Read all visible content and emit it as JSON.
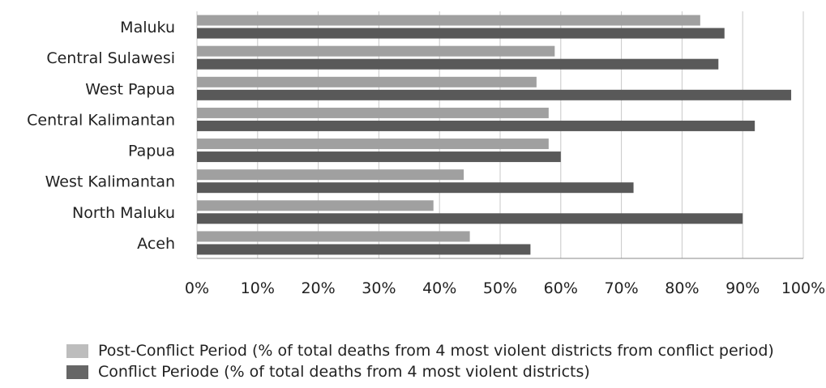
{
  "chart_data": {
    "type": "bar",
    "orientation": "horizontal",
    "title": "",
    "xlabel": "",
    "ylabel": "",
    "categories": [
      "Maluku",
      "Central Sulawesi",
      "West Papua",
      "Central Kalimantan",
      "Papua",
      "West Kalimantan",
      "North Maluku",
      "Aceh"
    ],
    "series": [
      {
        "name": "Post-Conflict Period (% of total deaths from 4 most violent districts from conflict period)",
        "color": "#a0a0a0",
        "values": [
          83,
          59,
          56,
          58,
          58,
          44,
          39,
          45
        ]
      },
      {
        "name": "Conflict Periode (% of total deaths from 4 most violent districts)",
        "color": "#595959",
        "values": [
          87,
          86,
          98,
          92,
          60,
          72,
          90,
          55
        ]
      }
    ],
    "xlim": [
      0,
      100
    ],
    "xticks": [
      "0%",
      "10%",
      "20%",
      "30%",
      "40%",
      "50%",
      "60%",
      "70%",
      "80%",
      "90%",
      "100%"
    ],
    "grid": "vertical",
    "legend_position": "bottom"
  }
}
